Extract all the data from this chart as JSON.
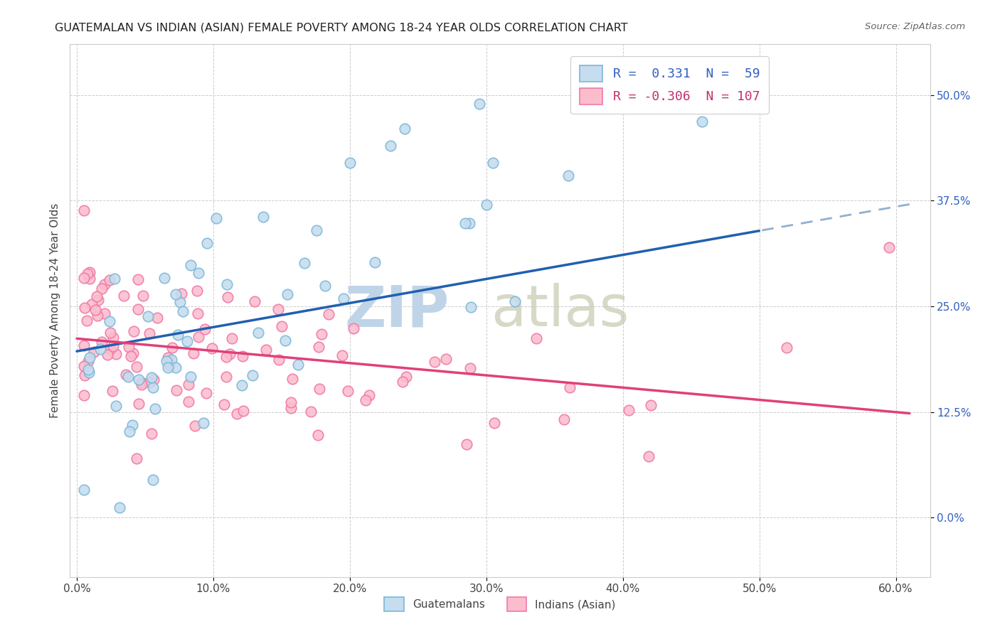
{
  "title": "GUATEMALAN VS INDIAN (ASIAN) FEMALE POVERTY AMONG 18-24 YEAR OLDS CORRELATION CHART",
  "source": "Source: ZipAtlas.com",
  "ylabel": "Female Poverty Among 18-24 Year Olds",
  "r_guatemalan": 0.331,
  "n_guatemalan": 59,
  "r_indian": -0.306,
  "n_indian": 107,
  "color_guatemalan_edge": "#7ab8d9",
  "color_guatemalan_fill": "#c6dcef",
  "color_indian_edge": "#f078a8",
  "color_indian_fill": "#fbbdcc",
  "color_trend_guatemalan": "#2060b0",
  "color_trend_indian": "#e0407a",
  "color_dash": "#90b0d0",
  "background_color": "#ffffff",
  "watermark_zip_color": "#c0d4e8",
  "watermark_atlas_color": "#c8c8b0",
  "ytick_color": "#3060c0",
  "xlim": [
    -0.005,
    0.625
  ],
  "ylim": [
    -0.07,
    0.56
  ],
  "xticks": [
    0.0,
    0.1,
    0.2,
    0.3,
    0.4,
    0.5,
    0.6
  ],
  "yticks": [
    0.0,
    0.125,
    0.25,
    0.375,
    0.5
  ],
  "legend_labels": [
    "R =  0.331  N =  59",
    "R = -0.306  N = 107"
  ],
  "legend_colors": [
    "#3060c0",
    "#c03070"
  ],
  "bottom_legend_labels": [
    "Guatemalans",
    "Indians (Asian)"
  ]
}
